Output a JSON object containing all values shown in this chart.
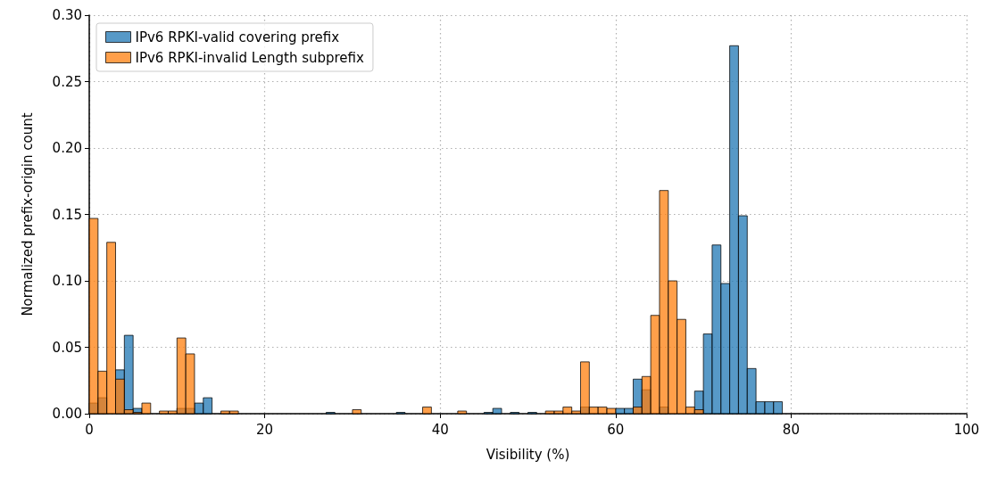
{
  "chart_data": {
    "type": "histogram",
    "xlabel": "Visibility (%)",
    "ylabel": "Normalized prefix-origin count",
    "bins": [
      0,
      1,
      2,
      3,
      4,
      5,
      6,
      7,
      8,
      9,
      10,
      11,
      12,
      13,
      14,
      15,
      16,
      17,
      18,
      19,
      20,
      21,
      22,
      23,
      24,
      25,
      26,
      27,
      28,
      29,
      30,
      31,
      32,
      33,
      34,
      35,
      36,
      37,
      38,
      39,
      40,
      41,
      42,
      43,
      44,
      45,
      46,
      47,
      48,
      49,
      50,
      51,
      52,
      53,
      54,
      55,
      56,
      57,
      58,
      59,
      60,
      61,
      62,
      63,
      64,
      65,
      66,
      67,
      68,
      69,
      70,
      71,
      72,
      73,
      74,
      75,
      76,
      77,
      78,
      79,
      80,
      81,
      82,
      83,
      84,
      85,
      86,
      87,
      88,
      89,
      90,
      91,
      92,
      93,
      94,
      95,
      96,
      97,
      98,
      99,
      100
    ],
    "series": [
      {
        "name": "IPv6 RPKI-valid covering prefix",
        "color": "#1f77b4",
        "values": [
          0.008,
          0.012,
          0,
          0.033,
          0.059,
          0.004,
          0,
          0,
          0,
          0,
          0.004,
          0.004,
          0.008,
          0.012,
          0,
          0,
          0,
          0,
          0,
          0,
          0,
          0,
          0,
          0,
          0,
          0,
          0,
          0.001,
          0,
          0,
          0,
          0,
          0,
          0,
          0,
          0.001,
          0,
          0,
          0,
          0,
          0,
          0,
          0,
          0,
          0,
          0.001,
          0.004,
          0,
          0.001,
          0,
          0.001,
          0,
          0,
          0,
          0,
          0,
          0.005,
          0,
          0,
          0,
          0.004,
          0.004,
          0.026,
          0.018,
          0,
          0.005,
          0,
          0,
          0,
          0.017,
          0.06,
          0.127,
          0.098,
          0.277,
          0.149,
          0.034,
          0.009,
          0.009,
          0.009,
          0,
          0,
          0,
          0,
          0,
          0,
          0,
          0,
          0,
          0,
          0,
          0,
          0,
          0,
          0,
          0,
          0,
          0,
          0,
          0,
          0
        ]
      },
      {
        "name": "IPv6 RPKI-invalid Length subprefix",
        "color": "#ff7f0e",
        "values": [
          0.147,
          0.032,
          0.129,
          0.026,
          0.003,
          0.001,
          0.008,
          0,
          0.002,
          0.002,
          0.057,
          0.045,
          0,
          0,
          0,
          0.002,
          0.002,
          0,
          0,
          0,
          0,
          0,
          0,
          0,
          0,
          0,
          0,
          0,
          0,
          0,
          0.003,
          0,
          0,
          0,
          0,
          0,
          0,
          0,
          0.005,
          0,
          0,
          0,
          0.002,
          0,
          0,
          0,
          0,
          0,
          0,
          0,
          0,
          0,
          0.002,
          0.002,
          0.005,
          0.002,
          0.039,
          0.005,
          0.005,
          0.004,
          0,
          0,
          0.005,
          0.028,
          0.074,
          0.168,
          0.1,
          0.071,
          0.005,
          0.003,
          0,
          0,
          0,
          0,
          0,
          0,
          0,
          0,
          0,
          0,
          0,
          0,
          0,
          0,
          0,
          0,
          0,
          0,
          0,
          0,
          0,
          0,
          0,
          0,
          0,
          0,
          0,
          0,
          0,
          0
        ]
      }
    ],
    "xlim": [
      0,
      100
    ],
    "xticks": [
      0,
      20,
      40,
      60,
      80,
      100
    ],
    "ylim": [
      0,
      0.3
    ],
    "yticks": [
      {
        "value": 0,
        "label": "0.00"
      },
      0.05,
      {
        "value": 0.1,
        "label": "0.10"
      },
      0.15,
      {
        "value": 0.2,
        "label": "0.20"
      },
      0.25,
      {
        "value": 0.3,
        "label": "0.30"
      }
    ],
    "grid": true,
    "legend": "top left"
  }
}
